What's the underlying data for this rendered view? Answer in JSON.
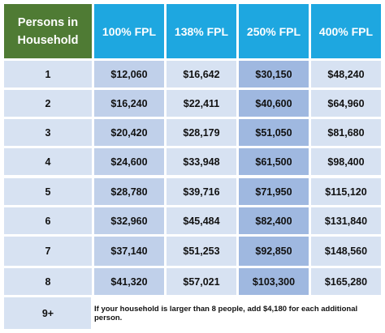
{
  "table": {
    "header": {
      "persons_line1": "Persons in",
      "persons_line2": "Household",
      "columns": [
        "100% FPL",
        "138% FPL",
        "250% FPL",
        "400% FPL"
      ]
    },
    "rows": [
      {
        "persons": "1",
        "values": [
          "$12,060",
          "$16,642",
          "$30,150",
          "$48,240"
        ]
      },
      {
        "persons": "2",
        "values": [
          "$16,240",
          "$22,411",
          "$40,600",
          "$64,960"
        ]
      },
      {
        "persons": "3",
        "values": [
          "$20,420",
          "$28,179",
          "$51,050",
          "$81,680"
        ]
      },
      {
        "persons": "4",
        "values": [
          "$24,600",
          "$33,948",
          "$61,500",
          "$98,400"
        ]
      },
      {
        "persons": "5",
        "values": [
          "$28,780",
          "$39,716",
          "$71,950",
          "$115,120"
        ]
      },
      {
        "persons": "6",
        "values": [
          "$32,960",
          "$45,484",
          "$82,400",
          "$131,840"
        ]
      },
      {
        "persons": "7",
        "values": [
          "$37,140",
          "$51,253",
          "$92,850",
          "$148,560"
        ]
      },
      {
        "persons": "8",
        "values": [
          "$41,320",
          "$57,021",
          "$103,300",
          "$165,280"
        ]
      }
    ],
    "footer": {
      "persons": "9+",
      "note": "If your household is larger than 8 people, add $4,180 for each additional person."
    }
  },
  "colors": {
    "persons_header": "#4f7b34",
    "fpl_header": "#1ea7e0",
    "cell_light": "#d7e2f2",
    "cell_mid": "#c0d0ea",
    "cell_dark": "#9fb8e0"
  }
}
